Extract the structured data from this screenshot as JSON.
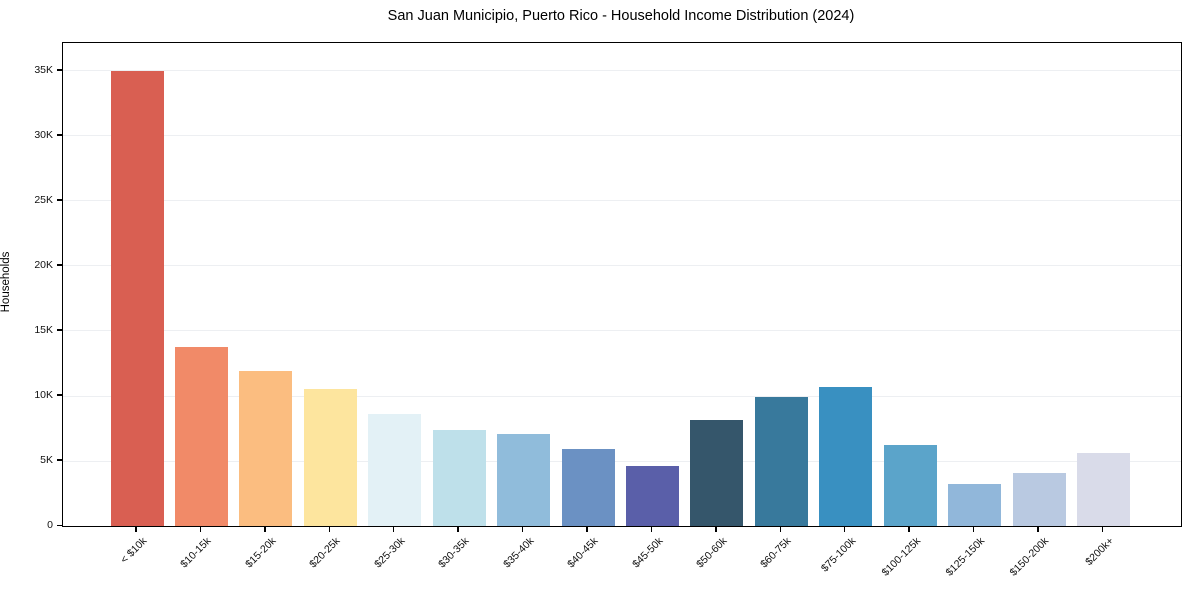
{
  "title": "San Juan Municipio, Puerto Rico - Household Income Distribution (2024)",
  "chart_data": {
    "type": "bar",
    "title": "San Juan Municipio, Puerto Rico - Household Income Distribution (2024)",
    "xlabel": "",
    "ylabel": "Households",
    "ylim": [
      0,
      37150
    ],
    "grid": "horizontal",
    "legend": "none",
    "background_color": "#ffffff",
    "grid_color": "#edeff2",
    "axis_color": "#000000",
    "categories": [
      "< $10k",
      "$10-15k",
      "$15-20k",
      "$20-25k",
      "$25-30k",
      "$30-35k",
      "$35-40k",
      "$40-45k",
      "$45-50k",
      "$50-60k",
      "$60-75k",
      "$75-100k",
      "$100-125k",
      "$125-150k",
      "$150-200k",
      "$200k+"
    ],
    "values": [
      35000,
      13750,
      11900,
      10550,
      8650,
      7400,
      7050,
      5950,
      4650,
      8150,
      9950,
      10700,
      6250,
      3250,
      4100,
      5600
    ],
    "bar_colors": [
      "#d95f52",
      "#f18a68",
      "#fbbd80",
      "#fde59e",
      "#e3f1f6",
      "#bee0ea",
      "#90bcdb",
      "#6b91c3",
      "#5a5fa9",
      "#35566b",
      "#38799c",
      "#3990c1",
      "#5ba4ca",
      "#91b7da",
      "#b9c9e1",
      "#d9dbe9"
    ],
    "yticks": [
      {
        "value": 0,
        "label": "0"
      },
      {
        "value": 5000,
        "label": "5K"
      },
      {
        "value": 10000,
        "label": "10K"
      },
      {
        "value": 15000,
        "label": "15K"
      },
      {
        "value": 20000,
        "label": "20K"
      },
      {
        "value": 25000,
        "label": "25K"
      },
      {
        "value": 30000,
        "label": "30K"
      },
      {
        "value": 35000,
        "label": "35K"
      }
    ]
  }
}
